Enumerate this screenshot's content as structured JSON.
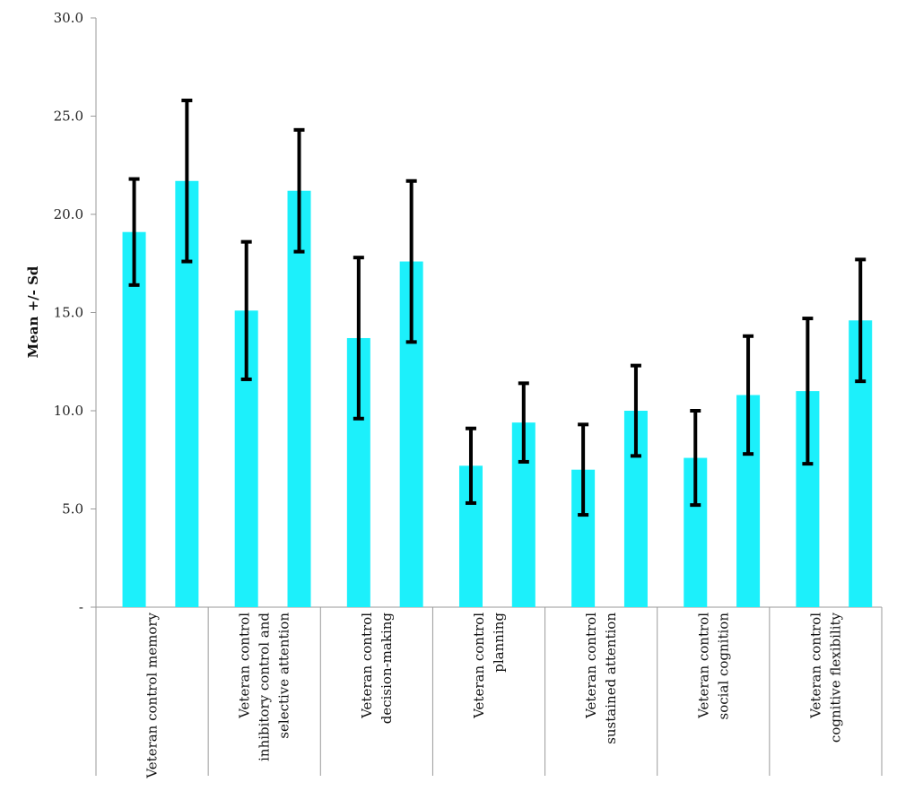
{
  "chart_data": {
    "type": "bar",
    "ylabel": "Mean +/- Sd",
    "xlabel": "",
    "ylim": [
      0,
      30
    ],
    "yticks": [
      "-",
      "5.0",
      "10.0",
      "15.0",
      "20.0",
      "25.0",
      "30.0"
    ],
    "bar_color": "#1cf0fb",
    "error_color": "#000000",
    "grid": false,
    "groups": [
      {
        "label": [
          "Veteran control memory"
        ],
        "bars": [
          {
            "mean": 19.1,
            "sd": 2.7
          },
          {
            "mean": 21.7,
            "sd": 4.1
          }
        ]
      },
      {
        "label": [
          "Veteran control",
          "inhibitory control and",
          "selective attention"
        ],
        "bars": [
          {
            "mean": 15.1,
            "sd": 3.5
          },
          {
            "mean": 21.2,
            "sd": 3.1
          }
        ]
      },
      {
        "label": [
          "Veteran control",
          "decision-making"
        ],
        "bars": [
          {
            "mean": 13.7,
            "sd": 4.1
          },
          {
            "mean": 17.6,
            "sd": 4.1
          }
        ]
      },
      {
        "label": [
          "Veteran control",
          "planning"
        ],
        "bars": [
          {
            "mean": 7.2,
            "sd": 1.9
          },
          {
            "mean": 9.4,
            "sd": 2.0
          }
        ]
      },
      {
        "label": [
          "Veteran control",
          "sustained attention"
        ],
        "bars": [
          {
            "mean": 7.0,
            "sd": 2.3
          },
          {
            "mean": 10.0,
            "sd": 2.3
          }
        ]
      },
      {
        "label": [
          "Veteran control",
          "social cognition"
        ],
        "bars": [
          {
            "mean": 7.6,
            "sd": 2.4
          },
          {
            "mean": 10.8,
            "sd": 3.0
          }
        ]
      },
      {
        "label": [
          "Veteran control",
          "cognitive flexibility"
        ],
        "bars": [
          {
            "mean": 11.0,
            "sd": 3.7
          },
          {
            "mean": 14.6,
            "sd": 3.1
          }
        ]
      }
    ]
  }
}
